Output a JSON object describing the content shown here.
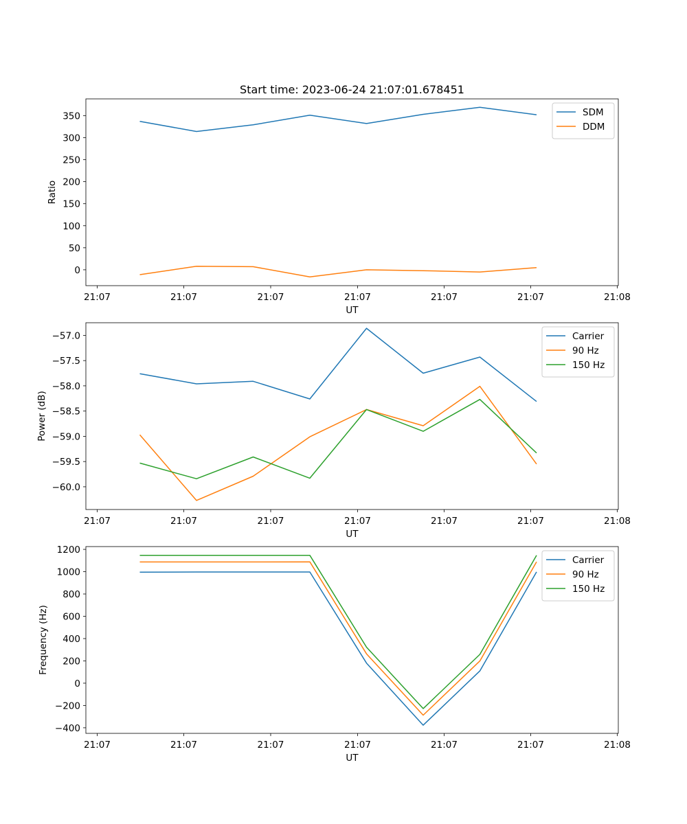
{
  "chart_data": [
    {
      "type": "line",
      "title": "Start time: 2023-06-24 21:07:01.678451",
      "xlabel": "UT",
      "ylabel": "Ratio",
      "x_tick_labels": [
        "21:07",
        "21:07",
        "21:07",
        "21:07",
        "21:07",
        "21:07",
        "21:08"
      ],
      "yticks": [
        0,
        50,
        100,
        150,
        200,
        250,
        300,
        350
      ],
      "ylim": [
        -36,
        388
      ],
      "legend_position": "top-right",
      "series": [
        {
          "name": "SDM",
          "color": "#1f77b4",
          "values": [
            337,
            314,
            329,
            351,
            332,
            353,
            369,
            352
          ]
        },
        {
          "name": "DDM",
          "color": "#ff7f0e",
          "values": [
            -11,
            8,
            7,
            -16,
            0,
            -2,
            -5,
            5
          ]
        }
      ]
    },
    {
      "type": "line",
      "title": "",
      "xlabel": "UT",
      "ylabel": "Power (dB)",
      "x_tick_labels": [
        "21:07",
        "21:07",
        "21:07",
        "21:07",
        "21:07",
        "21:07",
        "21:08"
      ],
      "yticks": [
        -60.0,
        -59.5,
        -59.0,
        -58.5,
        -58.0,
        -57.5,
        -57.0
      ],
      "ylim": [
        -60.45,
        -56.75
      ],
      "legend_position": "top-right",
      "series": [
        {
          "name": "Carrier",
          "color": "#1f77b4",
          "values": [
            -57.76,
            -57.96,
            -57.91,
            -58.26,
            -56.86,
            -57.75,
            -57.43,
            -58.31
          ]
        },
        {
          "name": "90 Hz",
          "color": "#ff7f0e",
          "values": [
            -58.97,
            -60.27,
            -59.79,
            -59.01,
            -58.47,
            -58.79,
            -58.01,
            -59.55
          ]
        },
        {
          "name": "150 Hz",
          "color": "#2ca02c",
          "values": [
            -59.53,
            -59.84,
            -59.41,
            -59.83,
            -58.47,
            -58.9,
            -58.27,
            -59.33
          ]
        }
      ]
    },
    {
      "type": "line",
      "title": "",
      "xlabel": "UT",
      "ylabel": "Frequency (Hz)",
      "x_tick_labels": [
        "21:07",
        "21:07",
        "21:07",
        "21:07",
        "21:07",
        "21:07",
        "21:08"
      ],
      "yticks": [
        -400,
        -200,
        0,
        200,
        400,
        600,
        800,
        1000,
        1200
      ],
      "ylim": [
        -450,
        1225
      ],
      "legend_position": "top-right",
      "series": [
        {
          "name": "Carrier",
          "color": "#1f77b4",
          "values": [
            996,
            997,
            997,
            997,
            180,
            -377,
            110,
            998
          ]
        },
        {
          "name": "90 Hz",
          "color": "#ff7f0e",
          "values": [
            1087,
            1087,
            1087,
            1088,
            263,
            -287,
            199,
            1088
          ]
        },
        {
          "name": "150 Hz",
          "color": "#2ca02c",
          "values": [
            1146,
            1146,
            1146,
            1147,
            323,
            -228,
            258,
            1147
          ]
        }
      ]
    }
  ]
}
